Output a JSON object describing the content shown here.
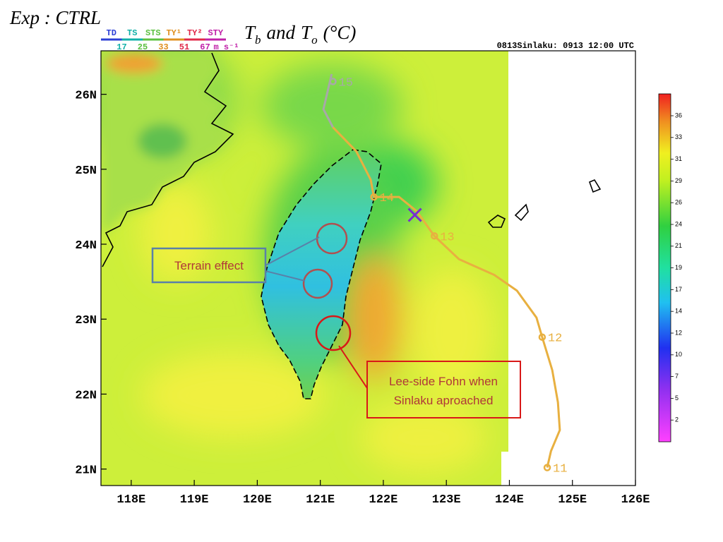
{
  "header": {
    "experiment": "Exp : CTRL",
    "title": {
      "var1": "T",
      "sub1": "b",
      "joiner": "and",
      "var2": "T",
      "sub2": "o",
      "unit": "(°C)"
    },
    "timestamp": "0813Sinlaku: 0913 12:00 UTC"
  },
  "legend": {
    "classes": [
      {
        "name": "TD",
        "color": "#2c3fd6"
      },
      {
        "name": "TS",
        "color": "#12b0a8"
      },
      {
        "name": "STS",
        "color": "#5cc040"
      },
      {
        "name": "TY¹",
        "color": "#e09020"
      },
      {
        "name": "TY²",
        "color": "#e02848"
      },
      {
        "name": "STY",
        "color": "#c020a8"
      }
    ],
    "thresholds": [
      17,
      25,
      33,
      51,
      67
    ],
    "unit": "m s⁻¹"
  },
  "map": {
    "xlim": [
      117.52,
      126.0
    ],
    "ylim": [
      20.78,
      26.58
    ],
    "xticks": [
      {
        "value": 118,
        "label": "118E"
      },
      {
        "value": 119,
        "label": "119E"
      },
      {
        "value": 120,
        "label": "120E"
      },
      {
        "value": 121,
        "label": "121E"
      },
      {
        "value": 122,
        "label": "122E"
      },
      {
        "value": 123,
        "label": "123E"
      },
      {
        "value": 124,
        "label": "124E"
      },
      {
        "value": 125,
        "label": "125E"
      },
      {
        "value": 126,
        "label": "126E"
      }
    ],
    "yticks": [
      {
        "value": 21,
        "label": "21N"
      },
      {
        "value": 22,
        "label": "22N"
      },
      {
        "value": 23,
        "label": "23N"
      },
      {
        "value": 24,
        "label": "24N"
      },
      {
        "value": 25,
        "label": "25N"
      },
      {
        "value": 26,
        "label": "26N"
      }
    ],
    "track": [
      {
        "color": "#a8a8a8",
        "lon": [
          121.18,
          121.05,
          121.2
        ],
        "lat": [
          26.27,
          25.8,
          25.56
        ]
      },
      {
        "color": "#e8b040",
        "lon": [
          121.2,
          121.57,
          121.8,
          121.85,
          122.25,
          122.53,
          122.81,
          123.2,
          123.76,
          124.12,
          124.43,
          124.52,
          124.68,
          124.77,
          124.8,
          124.66,
          124.6
        ],
        "lat": [
          25.56,
          25.24,
          24.86,
          24.63,
          24.63,
          24.44,
          24.11,
          23.8,
          23.59,
          23.38,
          23.02,
          22.76,
          22.32,
          21.89,
          21.52,
          21.24,
          21.02
        ]
      }
    ],
    "day_marks": [
      {
        "label": 15,
        "lon": 121.2,
        "lat": 26.17
      },
      {
        "label": 14,
        "lon": 121.85,
        "lat": 24.63
      },
      {
        "label": 13,
        "lon": 122.81,
        "lat": 24.11
      },
      {
        "label": 12,
        "lon": 124.52,
        "lat": 22.76
      },
      {
        "label": 11,
        "lon": 124.6,
        "lat": 21.02
      }
    ],
    "position": {
      "lon": 122.5,
      "lat": 24.39,
      "color": "#7a2ed0"
    }
  },
  "colorbar": {
    "levels": [
      36,
      33,
      31,
      29,
      26,
      24,
      21,
      19,
      17,
      14,
      12,
      10,
      7,
      5,
      2
    ]
  },
  "annotations": {
    "terrain": "Terrain effect",
    "fohn": [
      "Lee-side Fohn when",
      "Sinlaku aproached"
    ]
  }
}
